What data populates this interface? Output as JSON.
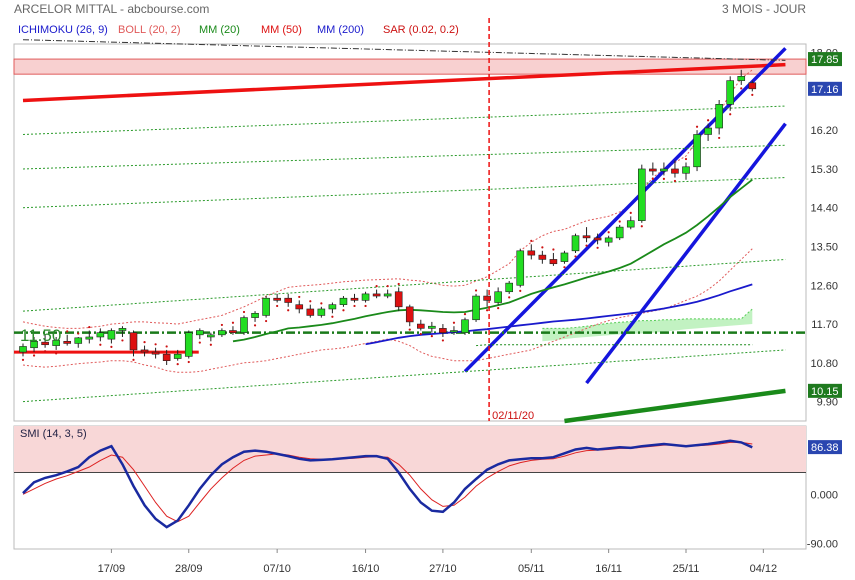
{
  "header": {
    "title": "ARCELOR MITTAL - abcbourse.com",
    "period": "3 MOIS - JOUR"
  },
  "legend": [
    {
      "label": "ICHIMOKU (26, 9)",
      "color": "#1a1acc"
    },
    {
      "label": "BOLL (20, 2)",
      "color": "#e05a5a"
    },
    {
      "label": "MM (20)",
      "color": "#1a8a1a"
    },
    {
      "label": "MM (50)",
      "color": "#dd1111"
    },
    {
      "label": "MM (200)",
      "color": "#1a1acc"
    },
    {
      "label": "SAR (0.02, 0.2)",
      "color": "#cc1111"
    }
  ],
  "price_axis": {
    "ticks": [
      "18.00",
      "17.10",
      "16.20",
      "15.30",
      "14.40",
      "13.50",
      "12.60",
      "11.70",
      "10.80",
      "9.90"
    ],
    "min": 9.45,
    "max": 18.2
  },
  "smi_axis": {
    "ticks": [
      "86.38",
      "0.000",
      "-90.00"
    ],
    "min": -100,
    "max": 125
  },
  "price_tags": [
    {
      "value": 17.85,
      "label": "17.85",
      "color": "#1f7a1f"
    },
    {
      "value": 17.16,
      "label": "17.16",
      "color": "#2a46b0"
    },
    {
      "value": 10.15,
      "label": "10.15",
      "color": "#1f7a1f"
    }
  ],
  "smi_tag": {
    "value": 86.38,
    "label": "86.38",
    "color": "#2a46b0"
  },
  "date_labels": [
    {
      "index": 8,
      "label": "17/09"
    },
    {
      "index": 15,
      "label": "28/09"
    },
    {
      "index": 23,
      "label": "07/10"
    },
    {
      "index": 31,
      "label": "16/10"
    },
    {
      "index": 38,
      "label": "27/10"
    },
    {
      "index": 46,
      "label": "05/11"
    },
    {
      "index": 53,
      "label": "16/11"
    },
    {
      "index": 60,
      "label": "25/11"
    },
    {
      "index": 67,
      "label": "04/12"
    }
  ],
  "marker": {
    "index": 42,
    "label": "02/11/20"
  },
  "support": {
    "value": 11.5,
    "label": "11.50"
  },
  "smi_label": "SMI (14, 3, 5)",
  "chart_data": {
    "type": "candlestick",
    "candles": [
      [
        11.05,
        11.25,
        10.95,
        11.18
      ],
      [
        11.15,
        11.4,
        11.05,
        11.3
      ],
      [
        11.28,
        11.45,
        11.15,
        11.22
      ],
      [
        11.2,
        11.4,
        11.1,
        11.32
      ],
      [
        11.3,
        11.45,
        11.2,
        11.25
      ],
      [
        11.25,
        11.4,
        11.15,
        11.38
      ],
      [
        11.35,
        11.55,
        11.25,
        11.4
      ],
      [
        11.4,
        11.6,
        11.3,
        11.5
      ],
      [
        11.35,
        11.6,
        11.25,
        11.55
      ],
      [
        11.55,
        11.65,
        11.4,
        11.6
      ],
      [
        11.5,
        11.55,
        10.95,
        11.1
      ],
      [
        11.1,
        11.2,
        10.95,
        11.05
      ],
      [
        11.05,
        11.15,
        10.9,
        11.0
      ],
      [
        11.0,
        11.1,
        10.75,
        10.85
      ],
      [
        10.9,
        11.1,
        10.85,
        11.0
      ],
      [
        10.95,
        11.55,
        10.9,
        11.5
      ],
      [
        11.45,
        11.6,
        11.35,
        11.55
      ],
      [
        11.4,
        11.5,
        11.3,
        11.45
      ],
      [
        11.45,
        11.6,
        11.4,
        11.55
      ],
      [
        11.55,
        11.65,
        11.45,
        11.5
      ],
      [
        11.5,
        11.9,
        11.45,
        11.85
      ],
      [
        11.85,
        12.0,
        11.75,
        11.95
      ],
      [
        11.9,
        12.35,
        11.85,
        12.3
      ],
      [
        12.3,
        12.4,
        12.2,
        12.25
      ],
      [
        12.3,
        12.4,
        12.1,
        12.2
      ],
      [
        12.15,
        12.25,
        11.95,
        12.05
      ],
      [
        12.05,
        12.15,
        11.85,
        11.9
      ],
      [
        11.9,
        12.1,
        11.85,
        12.05
      ],
      [
        12.05,
        12.2,
        11.95,
        12.15
      ],
      [
        12.15,
        12.35,
        12.1,
        12.3
      ],
      [
        12.3,
        12.4,
        12.2,
        12.25
      ],
      [
        12.25,
        12.45,
        12.2,
        12.4
      ],
      [
        12.4,
        12.5,
        12.3,
        12.35
      ],
      [
        12.35,
        12.5,
        12.3,
        12.4
      ],
      [
        12.45,
        12.55,
        12.0,
        12.1
      ],
      [
        12.1,
        12.15,
        11.65,
        11.75
      ],
      [
        11.7,
        11.8,
        11.55,
        11.6
      ],
      [
        11.6,
        11.75,
        11.5,
        11.65
      ],
      [
        11.6,
        11.7,
        11.4,
        11.5
      ],
      [
        11.55,
        11.65,
        11.45,
        11.55
      ],
      [
        11.5,
        11.85,
        11.45,
        11.8
      ],
      [
        11.8,
        12.4,
        11.75,
        12.35
      ],
      [
        12.35,
        12.5,
        12.1,
        12.25
      ],
      [
        12.2,
        12.55,
        12.15,
        12.45
      ],
      [
        12.45,
        12.7,
        12.4,
        12.65
      ],
      [
        12.6,
        13.45,
        12.55,
        13.4
      ],
      [
        13.4,
        13.55,
        13.2,
        13.3
      ],
      [
        13.3,
        13.4,
        13.1,
        13.2
      ],
      [
        13.2,
        13.35,
        13.05,
        13.1
      ],
      [
        13.15,
        13.4,
        13.1,
        13.35
      ],
      [
        13.4,
        13.8,
        13.35,
        13.75
      ],
      [
        13.75,
        13.95,
        13.6,
        13.7
      ],
      [
        13.7,
        13.8,
        13.55,
        13.65
      ],
      [
        13.6,
        13.75,
        13.5,
        13.7
      ],
      [
        13.7,
        14.0,
        13.65,
        13.95
      ],
      [
        13.95,
        14.2,
        13.9,
        14.1
      ],
      [
        14.1,
        15.4,
        14.05,
        15.3
      ],
      [
        15.3,
        15.45,
        15.15,
        15.25
      ],
      [
        15.25,
        15.45,
        15.15,
        15.3
      ],
      [
        15.3,
        15.5,
        15.1,
        15.2
      ],
      [
        15.2,
        15.45,
        15.05,
        15.35
      ],
      [
        15.35,
        16.2,
        15.25,
        16.1
      ],
      [
        16.1,
        16.35,
        15.95,
        16.25
      ],
      [
        16.25,
        16.9,
        16.1,
        16.8
      ],
      [
        16.8,
        17.45,
        16.65,
        17.35
      ],
      [
        17.35,
        17.6,
        17.25,
        17.45
      ],
      [
        17.3,
        17.35,
        17.1,
        17.16
      ]
    ],
    "bollinger_upper": [
      11.75,
      11.7,
      11.65,
      11.62,
      11.6,
      11.6,
      11.62,
      11.65,
      11.7,
      11.72,
      11.75,
      11.75,
      11.73,
      11.72,
      11.7,
      11.75,
      11.8,
      11.85,
      11.9,
      12.0,
      12.1,
      12.22,
      12.35,
      12.45,
      12.55,
      12.58,
      12.6,
      12.62,
      12.65,
      12.68,
      12.7,
      12.72,
      12.73,
      12.74,
      12.75,
      12.72,
      12.7,
      12.65,
      12.6,
      12.58,
      12.6,
      12.7,
      12.8,
      12.95,
      13.1,
      13.4,
      13.6,
      13.75,
      13.85,
      13.9,
      14.0,
      14.1,
      14.15,
      14.2,
      14.3,
      14.45,
      14.8,
      15.1,
      15.3,
      15.45,
      15.6,
      15.95,
      16.25,
      16.6,
      17.05,
      17.4,
      17.6
    ],
    "bollinger_lower": [
      10.75,
      10.72,
      10.7,
      10.72,
      10.75,
      10.78,
      10.8,
      10.82,
      10.85,
      10.85,
      10.82,
      10.75,
      10.7,
      10.62,
      10.58,
      10.58,
      10.6,
      10.65,
      10.7,
      10.75,
      10.8,
      10.82,
      10.85,
      10.9,
      10.95,
      11.0,
      11.05,
      11.1,
      11.12,
      11.15,
      11.2,
      11.25,
      11.3,
      11.35,
      11.3,
      11.2,
      11.05,
      10.95,
      10.9,
      10.85,
      10.85,
      10.85,
      10.9,
      10.95,
      11.0,
      11.05,
      11.1,
      11.2,
      11.3,
      11.4,
      11.5,
      11.6,
      11.7,
      11.78,
      11.85,
      11.9,
      11.95,
      12.0,
      12.05,
      12.15,
      12.25,
      12.35,
      12.5,
      12.7,
      12.95,
      13.2,
      13.45
    ],
    "mm20": [
      null,
      null,
      null,
      null,
      null,
      null,
      null,
      null,
      null,
      null,
      null,
      null,
      null,
      null,
      null,
      null,
      null,
      null,
      null,
      11.3,
      11.34,
      11.4,
      11.47,
      11.53,
      11.6,
      11.62,
      11.65,
      11.68,
      11.72,
      11.77,
      11.82,
      11.88,
      11.93,
      11.98,
      12.02,
      12.03,
      12.02,
      12.0,
      11.98,
      11.97,
      11.98,
      12.03,
      12.08,
      12.14,
      12.2,
      12.3,
      12.4,
      12.48,
      12.55,
      12.62,
      12.7,
      12.78,
      12.85,
      12.92,
      13.0,
      13.1,
      13.25,
      13.4,
      13.55,
      13.68,
      13.82,
      14.0,
      14.2,
      14.42,
      14.65,
      14.85,
      15.05
    ],
    "mm50": [
      null,
      null,
      null,
      null,
      null,
      null,
      null,
      null,
      null,
      null,
      null,
      null,
      null,
      null,
      null,
      null,
      null,
      null,
      null,
      null,
      null,
      null,
      null,
      null,
      null,
      null,
      null,
      null,
      null,
      null,
      null,
      null,
      null,
      null,
      null,
      null,
      null,
      null,
      null,
      null,
      null,
      null,
      null,
      null,
      null,
      null,
      null,
      null,
      null,
      null,
      11.89,
      11.92,
      11.95,
      11.98,
      12.02,
      12.06,
      12.12,
      12.18,
      12.24,
      12.3,
      12.36,
      12.43,
      12.5,
      12.58,
      12.66,
      12.73,
      12.79
    ],
    "mm200": [
      null,
      null,
      null,
      null,
      null,
      null,
      null,
      null,
      null,
      null,
      null,
      null,
      null,
      null,
      null,
      null,
      null,
      null,
      null,
      null,
      null,
      null,
      null,
      null,
      null,
      null,
      null,
      null,
      null,
      null,
      null,
      11.23,
      11.28,
      11.33,
      11.38,
      11.42,
      11.45,
      11.47,
      11.49,
      11.51,
      11.53,
      11.56,
      11.58,
      11.61,
      11.64,
      11.67,
      11.7,
      11.73,
      11.76,
      11.78,
      11.8,
      11.83,
      11.86,
      11.89,
      11.92,
      11.95,
      11.98,
      12.02,
      12.06,
      12.11,
      12.16,
      12.22,
      12.29,
      12.37,
      12.46,
      12.54,
      12.62
    ],
    "cloud_upper": [
      null,
      null,
      null,
      null,
      null,
      null,
      null,
      null,
      null,
      null,
      null,
      null,
      null,
      null,
      null,
      null,
      null,
      null,
      null,
      null,
      null,
      null,
      null,
      null,
      null,
      null,
      null,
      null,
      null,
      null,
      null,
      null,
      null,
      null,
      null,
      null,
      null,
      null,
      null,
      null,
      null,
      null,
      null,
      null,
      null,
      null,
      null,
      11.6,
      11.6,
      11.6,
      11.62,
      11.65,
      11.68,
      11.72,
      11.74,
      11.76,
      11.78,
      11.78,
      11.8,
      11.8,
      11.82,
      11.82,
      11.82,
      11.82,
      11.82,
      11.82,
      12.05
    ],
    "cloud_lower": [
      null,
      null,
      null,
      null,
      null,
      null,
      null,
      null,
      null,
      null,
      null,
      null,
      null,
      null,
      null,
      null,
      null,
      null,
      null,
      null,
      null,
      null,
      null,
      null,
      null,
      null,
      null,
      null,
      null,
      null,
      null,
      null,
      null,
      null,
      null,
      null,
      null,
      null,
      null,
      null,
      null,
      null,
      null,
      null,
      null,
      null,
      null,
      11.3,
      11.32,
      11.35,
      11.38,
      11.4,
      11.42,
      11.44,
      11.46,
      11.47,
      11.48,
      11.5,
      11.52,
      11.55,
      11.58,
      11.6,
      11.62,
      11.64,
      11.66,
      11.68,
      11.7
    ],
    "ichimoku_base": [
      null,
      null,
      null,
      null,
      null,
      null,
      null,
      null,
      null,
      null,
      null,
      null,
      null,
      null,
      null,
      null,
      null,
      null,
      null,
      null,
      null,
      null,
      null,
      null,
      null,
      null,
      null,
      null,
      null,
      null,
      null,
      null,
      null,
      null,
      null,
      null,
      null,
      null,
      null,
      null,
      null,
      11.2,
      11.22,
      11.22,
      11.22,
      11.22,
      11.22,
      11.22,
      11.22,
      11.22,
      11.22,
      11.22,
      11.22,
      11.22,
      11.22,
      11.22,
      11.22,
      11.22,
      11.22,
      11.22,
      11.22,
      11.22,
      11.22,
      11.22,
      11.22,
      11.22,
      11.22
    ],
    "smi": [
      2,
      22,
      30,
      35,
      42,
      50,
      68,
      80,
      88,
      55,
      15,
      -20,
      -45,
      -60,
      -48,
      -20,
      10,
      35,
      55,
      68,
      78,
      80,
      78,
      74,
      70,
      65,
      62,
      63,
      64,
      66,
      68,
      70,
      70,
      65,
      40,
      10,
      -15,
      -30,
      -32,
      -15,
      10,
      28,
      45,
      55,
      62,
      64,
      66,
      66,
      68,
      75,
      82,
      85,
      82,
      84,
      86,
      85,
      88,
      90,
      92,
      90,
      88,
      90,
      92,
      95,
      98,
      95,
      86
    ],
    "smi_signal": [
      0,
      10,
      20,
      28,
      34,
      42,
      50,
      62,
      72,
      68,
      45,
      15,
      -15,
      -40,
      -50,
      -40,
      -15,
      10,
      30,
      48,
      62,
      70,
      72,
      74,
      72,
      68,
      65,
      64,
      64,
      65,
      66,
      68,
      69,
      68,
      55,
      35,
      10,
      -10,
      -22,
      -20,
      -5,
      15,
      30,
      42,
      52,
      58,
      62,
      64,
      65,
      70,
      76,
      80,
      81,
      82,
      84,
      84,
      86,
      88,
      90,
      90,
      89,
      89,
      90,
      92,
      95,
      95,
      92
    ],
    "trendlines": [
      {
        "name": "regression-red",
        "color": "#ee1111",
        "width": 3.5,
        "dash": "",
        "from": [
          0,
          16.89
        ],
        "to": [
          69,
          17.72
        ]
      },
      {
        "name": "channel-upper-blue",
        "color": "#1515dd",
        "width": 3.5,
        "dash": "",
        "from": [
          40,
          10.6
        ],
        "to": [
          69,
          18.1
        ]
      },
      {
        "name": "channel-lower-blue",
        "color": "#1515dd",
        "width": 3.5,
        "dash": "",
        "from": [
          51,
          10.33
        ],
        "to": [
          69,
          16.35
        ]
      },
      {
        "name": "green-bottom",
        "color": "#1a8a1a",
        "width": 4.5,
        "dash": "",
        "from": [
          49,
          9.45
        ],
        "to": [
          69,
          10.15
        ]
      },
      {
        "name": "green-dotted-1",
        "color": "#2a9a2a",
        "width": 1,
        "dash": "2,2",
        "from": [
          0,
          16.1
        ],
        "to": [
          69,
          16.76
        ]
      },
      {
        "name": "green-dotted-2",
        "color": "#2a9a2a",
        "width": 1,
        "dash": "2,2",
        "from": [
          0,
          15.3
        ],
        "to": [
          69,
          15.85
        ]
      },
      {
        "name": "green-dotted-3",
        "color": "#2a9a2a",
        "width": 1,
        "dash": "2,2",
        "from": [
          0,
          14.4
        ],
        "to": [
          69,
          15.1
        ]
      },
      {
        "name": "green-dotted-4",
        "color": "#2a9a2a",
        "width": 1,
        "dash": "2,2",
        "from": [
          0,
          12.0
        ],
        "to": [
          69,
          13.2
        ]
      },
      {
        "name": "green-dotted-5",
        "color": "#2a9a2a",
        "width": 1,
        "dash": "2,2",
        "from": [
          0,
          9.9
        ],
        "to": [
          69,
          11.1
        ]
      },
      {
        "name": "dashdot-black",
        "color": "#333333",
        "width": 1,
        "dash": "6,2,1,2",
        "from": [
          0,
          18.3
        ],
        "to": [
          69,
          17.82
        ]
      }
    ],
    "resistance_band": [
      17.5,
      17.85
    ],
    "support_short": {
      "from": 0,
      "to": 15,
      "value": 11.05
    },
    "sar_count": 67
  }
}
